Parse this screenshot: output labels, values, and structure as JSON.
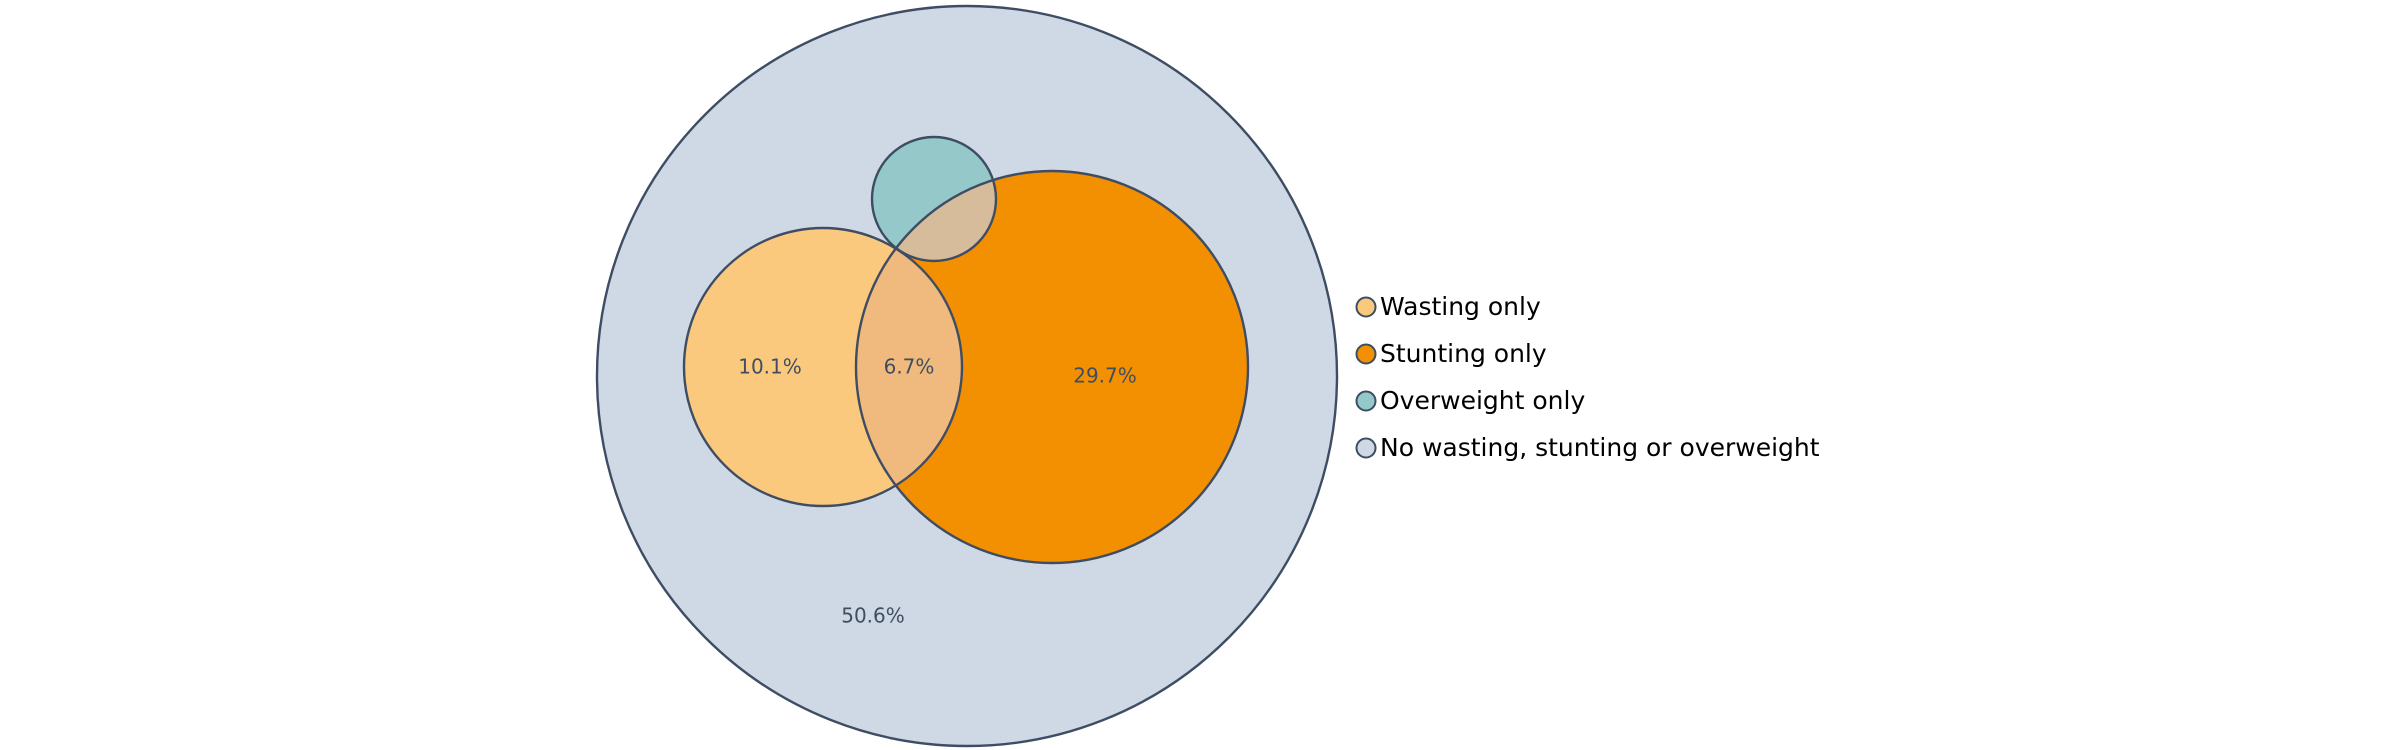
{
  "chart_data": {
    "type": "venn",
    "title": "",
    "sets": [
      {
        "key": "outer",
        "name": "No wasting, stunting or overweight",
        "color": "#cfd9e6"
      },
      {
        "key": "wasting",
        "name": "Wasting only",
        "color": "#fbc97e"
      },
      {
        "key": "stunting",
        "name": "Stunting only",
        "color": "#f39001"
      },
      {
        "key": "overweight",
        "name": "Overweight only",
        "color": "#94c8c9"
      }
    ],
    "overlap_colors": {
      "wasting_stunting": "#f0b97e",
      "stunting_overweight": "#d6bc9b",
      "wasting_overweight": "#d9b79a"
    },
    "outline_color": "#3e4d63",
    "label_color": "#3f4e60",
    "region_labels": [
      {
        "region": "outer",
        "text": "50.6%",
        "value": 50.6
      },
      {
        "region": "wasting",
        "text": "10.1%",
        "value": 10.1
      },
      {
        "region": "wasting_stunting",
        "text": "6.7%",
        "value": 6.7
      },
      {
        "region": "stunting",
        "text": "29.7%",
        "value": 29.7
      }
    ],
    "legend": {
      "placement": "right",
      "entries": [
        {
          "label": "Wasting only",
          "color": "#fbc97e"
        },
        {
          "label": "Stunting only",
          "color": "#f39001"
        },
        {
          "label": "Overweight only",
          "color": "#94c8c9"
        },
        {
          "label": "No wasting, stunting or overweight",
          "color": "#cfd9e6"
        }
      ]
    }
  }
}
